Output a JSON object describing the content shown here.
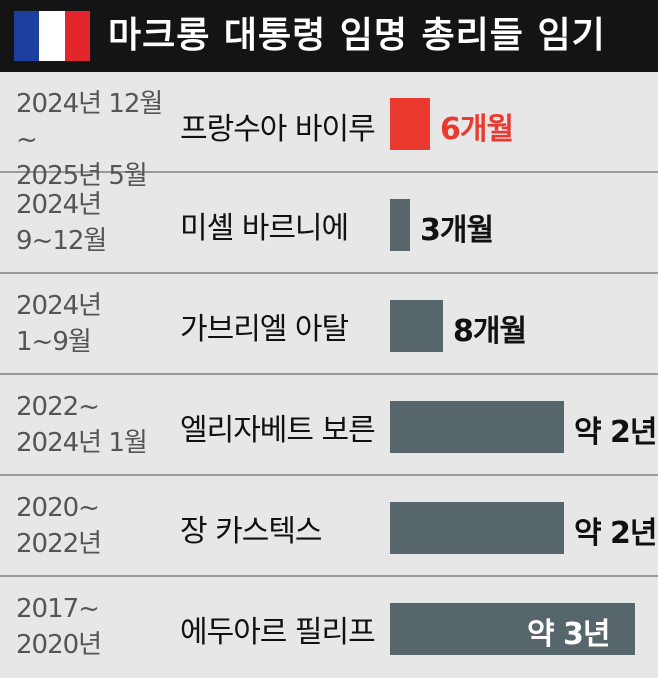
{
  "header": {
    "title": "마크롱 대통령 임명 총리들 임기",
    "flag_colors": [
      "#1d3fa0",
      "#ffffff",
      "#e3262b"
    ]
  },
  "colors": {
    "highlight": "#ea3a2f",
    "bar": "#56666a"
  },
  "chart_data": {
    "type": "bar",
    "orientation": "horizontal",
    "title": "마크롱 대통령 임명 총리들 임기",
    "categories": [
      "프랑수아 바이루",
      "미셸 바르니에",
      "가브리엘 아탈",
      "엘리자베트 보른",
      "장 카스텍스",
      "에두아르 필리프"
    ],
    "periods": [
      "2024년 12월~\n2025년 5월",
      "2024년\n9~12월",
      "2024년\n1~9월",
      "2022~\n2024년 1월",
      "2020~\n2022년",
      "2017~\n2020년"
    ],
    "values": [
      6,
      3,
      8,
      22,
      22,
      37
    ],
    "unit": "months",
    "labels": [
      "6개월",
      "3개월",
      "8개월",
      "약 2년",
      "약 2년",
      "약 3년"
    ],
    "highlight_index": 0
  }
}
